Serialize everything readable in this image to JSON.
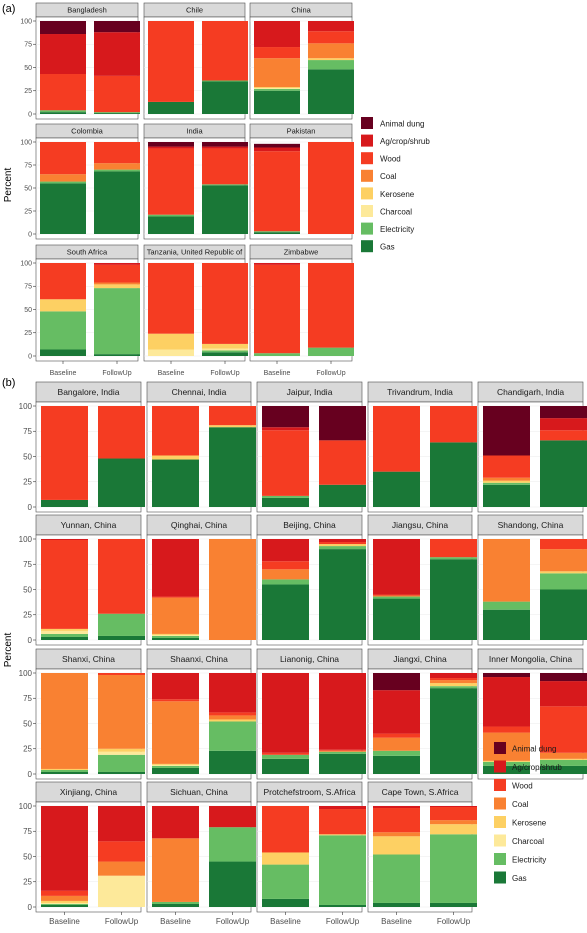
{
  "colors": {
    "Animal dung": "#67001f",
    "Ag/crop/shrub": "#d7191c",
    "Wood": "#f53c22",
    "Coal": "#f98132",
    "Kerosene": "#fdd063",
    "Charcoal": "#fde99a",
    "Electricity": "#66bd63",
    "Gas": "#1a7837"
  },
  "chart_data": [
    {
      "type": "bar",
      "stacked": true,
      "panel_label": "(a)",
      "ylabel": "Percent",
      "ylim": [
        0,
        100
      ],
      "yticks": [
        0,
        25,
        50,
        75,
        100
      ],
      "categories": [
        "Baseline",
        "FollowUp"
      ],
      "stack_order": [
        "Gas",
        "Electricity",
        "Charcoal",
        "Kerosene",
        "Coal",
        "Wood",
        "Ag/crop/shrub",
        "Animal dung"
      ],
      "legend": [
        "Animal dung",
        "Ag/crop/shrub",
        "Wood",
        "Coal",
        "Kerosene",
        "Charcoal",
        "Electricity",
        "Gas"
      ],
      "legend_position": "right",
      "grid": true,
      "facets": [
        {
          "title": "Bangladesh",
          "bars": [
            {
              "Gas": 2,
              "Electricity": 2,
              "Wood": 39,
              "Ag/crop/shrub": 43,
              "Animal dung": 14
            },
            {
              "Gas": 1,
              "Electricity": 1,
              "Wood": 39,
              "Ag/crop/shrub": 47,
              "Animal dung": 12
            }
          ]
        },
        {
          "title": "Chile",
          "bars": [
            {
              "Gas": 13,
              "Wood": 87
            },
            {
              "Gas": 35,
              "Electricity": 1,
              "Wood": 64
            }
          ]
        },
        {
          "title": "China",
          "bars": [
            {
              "Gas": 25,
              "Electricity": 2,
              "Charcoal": 1,
              "Kerosene": 1,
              "Coal": 31,
              "Wood": 12,
              "Ag/crop/shrub": 28
            },
            {
              "Gas": 48,
              "Electricity": 10,
              "Kerosene": 2,
              "Coal": 16,
              "Wood": 13,
              "Ag/crop/shrub": 11
            }
          ]
        },
        {
          "title": "Colombia",
          "bars": [
            {
              "Gas": 55,
              "Electricity": 2,
              "Coal": 8,
              "Wood": 35
            },
            {
              "Gas": 68,
              "Electricity": 2,
              "Coal": 7,
              "Wood": 23
            }
          ]
        },
        {
          "title": "India",
          "bars": [
            {
              "Gas": 19,
              "Electricity": 2,
              "Wood": 72,
              "Ag/crop/shrub": 2,
              "Animal dung": 5
            },
            {
              "Gas": 53,
              "Electricity": 1,
              "Wood": 39,
              "Ag/crop/shrub": 2,
              "Animal dung": 5
            }
          ]
        },
        {
          "title": "Pakistan",
          "bars": [
            {
              "Gas": 2,
              "Electricity": 1,
              "Wood": 87,
              "Ag/crop/shrub": 4,
              "Animal dung": 4
            },
            {
              "Wood": 100
            }
          ]
        },
        {
          "title": "South Africa",
          "bars": [
            {
              "Gas": 7,
              "Electricity": 41,
              "Kerosene": 13,
              "Wood": 39
            },
            {
              "Gas": 2,
              "Electricity": 71,
              "Kerosene": 4,
              "Coal": 2,
              "Wood": 19,
              "Ag/crop/shrub": 2
            }
          ]
        },
        {
          "title": "Tanzania, United Republic of",
          "bars": [
            {
              "Charcoal": 7,
              "Kerosene": 17,
              "Wood": 76
            },
            {
              "Gas": 4,
              "Electricity": 2,
              "Charcoal": 2,
              "Kerosene": 5,
              "Wood": 87
            }
          ]
        },
        {
          "title": "Zimbabwe",
          "bars": [
            {
              "Electricity": 3,
              "Wood": 95,
              "Ag/crop/shrub": 2
            },
            {
              "Electricity": 9,
              "Wood": 91
            }
          ]
        }
      ]
    },
    {
      "type": "bar",
      "stacked": true,
      "panel_label": "(b)",
      "ylabel": "Percent",
      "ylim": [
        0,
        100
      ],
      "yticks": [
        0,
        25,
        50,
        75,
        100
      ],
      "categories": [
        "Baseline",
        "FollowUp"
      ],
      "stack_order": [
        "Gas",
        "Electricity",
        "Charcoal",
        "Kerosene",
        "Coal",
        "Wood",
        "Ag/crop/shrub",
        "Animal dung"
      ],
      "legend": [
        "Animal dung",
        "Ag/crop/shrub",
        "Wood",
        "Coal",
        "Kerosene",
        "Charcoal",
        "Electricity",
        "Gas"
      ],
      "legend_position": "bottom-right",
      "grid": true,
      "facets": [
        {
          "title": "Bangalore, India",
          "bars": [
            {
              "Gas": 7,
              "Wood": 93
            },
            {
              "Gas": 48,
              "Wood": 52
            }
          ]
        },
        {
          "title": "Chennai, India",
          "bars": [
            {
              "Gas": 47,
              "Kerosene": 4,
              "Wood": 49
            },
            {
              "Gas": 79,
              "Kerosene": 2,
              "Wood": 19
            }
          ]
        },
        {
          "title": "Jaipur, India",
          "bars": [
            {
              "Gas": 9,
              "Electricity": 2,
              "Wood": 65,
              "Ag/crop/shrub": 3,
              "Animal dung": 21
            },
            {
              "Gas": 22,
              "Wood": 44,
              "Animal dung": 34
            }
          ]
        },
        {
          "title": "Trivandrum, India",
          "bars": [
            {
              "Gas": 35,
              "Wood": 65
            },
            {
              "Gas": 64,
              "Wood": 36
            }
          ]
        },
        {
          "title": "Chandigarh, India",
          "bars": [
            {
              "Gas": 22,
              "Electricity": 2,
              "Kerosene": 2,
              "Coal": 3,
              "Wood": 22,
              "Animal dung": 49
            },
            {
              "Gas": 66,
              "Wood": 10,
              "Ag/crop/shrub": 12,
              "Animal dung": 12
            }
          ]
        },
        {
          "title": "Yunnan, China",
          "bars": [
            {
              "Gas": 3,
              "Electricity": 3,
              "Charcoal": 3,
              "Kerosene": 2,
              "Wood": 88,
              "Ag/crop/shrub": 1
            },
            {
              "Gas": 4,
              "Electricity": 22,
              "Wood": 74
            }
          ]
        },
        {
          "title": "Qinghai, China",
          "bars": [
            {
              "Gas": 2,
              "Electricity": 2,
              "Charcoal": 1,
              "Kerosene": 1,
              "Coal": 36,
              "Wood": 1,
              "Ag/crop/shrub": 57
            },
            {
              "Coal": 100
            }
          ]
        },
        {
          "title": "Beijing, China",
          "bars": [
            {
              "Gas": 55,
              "Electricity": 5,
              "Coal": 10,
              "Wood": 8,
              "Ag/crop/shrub": 22
            },
            {
              "Gas": 90,
              "Electricity": 3,
              "Kerosene": 2,
              "Wood": 2,
              "Ag/crop/shrub": 3
            }
          ]
        },
        {
          "title": "Jiangsu, China",
          "bars": [
            {
              "Gas": 41,
              "Electricity": 2,
              "Coal": 1,
              "Wood": 1,
              "Ag/crop/shrub": 55
            },
            {
              "Gas": 80,
              "Electricity": 2,
              "Wood": 18
            }
          ]
        },
        {
          "title": "Shandong, China",
          "bars": [
            {
              "Gas": 30,
              "Electricity": 8,
              "Coal": 62
            },
            {
              "Gas": 50,
              "Electricity": 16,
              "Kerosene": 2,
              "Coal": 22,
              "Wood": 10
            }
          ]
        },
        {
          "title": "Shanxi, China",
          "bars": [
            {
              "Gas": 2,
              "Electricity": 2,
              "Kerosene": 1,
              "Coal": 95
            },
            {
              "Gas": 2,
              "Electricity": 17,
              "Charcoal": 3,
              "Kerosene": 3,
              "Coal": 73,
              "Wood": 2
            }
          ]
        },
        {
          "title": "Shaanxi, China",
          "bars": [
            {
              "Gas": 6,
              "Electricity": 2,
              "Charcoal": 1,
              "Kerosene": 1,
              "Coal": 62,
              "Wood": 2,
              "Ag/crop/shrub": 26
            },
            {
              "Gas": 23,
              "Electricity": 29,
              "Kerosene": 2,
              "Coal": 4,
              "Wood": 3,
              "Ag/crop/shrub": 39
            }
          ]
        },
        {
          "title": "Lianonig, China",
          "bars": [
            {
              "Gas": 15,
              "Electricity": 4,
              "Wood": 2,
              "Ag/crop/shrub": 79
            },
            {
              "Gas": 20,
              "Electricity": 2,
              "Coal": 1,
              "Wood": 1,
              "Ag/crop/shrub": 76
            }
          ]
        },
        {
          "title": "Jiangxi, China",
          "bars": [
            {
              "Gas": 18,
              "Electricity": 5,
              "Coal": 13,
              "Wood": 4,
              "Ag/crop/shrub": 43,
              "Animal dung": 17
            },
            {
              "Gas": 85,
              "Electricity": 2,
              "Kerosene": 3,
              "Coal": 3,
              "Wood": 2,
              "Ag/crop/shrub": 5
            }
          ]
        },
        {
          "title": "Inner Mongolia, China",
          "bars": [
            {
              "Gas": 8,
              "Electricity": 4,
              "Kerosene": 1,
              "Coal": 28,
              "Wood": 6,
              "Ag/crop/shrub": 49,
              "Animal dung": 4
            },
            {
              "Gas": 8,
              "Electricity": 6,
              "Kerosene": 1,
              "Coal": 6,
              "Wood": 46,
              "Ag/crop/shrub": 25,
              "Animal dung": 8
            }
          ]
        },
        {
          "title": "Xinjiang, China",
          "bars": [
            {
              "Gas": 2,
              "Electricity": 1,
              "Charcoal": 1,
              "Kerosene": 2,
              "Coal": 5,
              "Wood": 5,
              "Ag/crop/shrub": 84
            },
            {
              "Charcoal": 31,
              "Coal": 14,
              "Wood": 20,
              "Ag/crop/shrub": 35
            }
          ]
        },
        {
          "title": "Sichuan, China",
          "bars": [
            {
              "Gas": 3,
              "Electricity": 2,
              "Coal": 63,
              "Ag/crop/shrub": 32
            },
            {
              "Gas": 45,
              "Electricity": 34,
              "Ag/crop/shrub": 21
            }
          ]
        },
        {
          "title": "Protchefstroom, S.Africa",
          "bars": [
            {
              "Gas": 8,
              "Electricity": 34,
              "Kerosene": 12,
              "Wood": 46
            },
            {
              "Gas": 2,
              "Electricity": 69,
              "Kerosene": 1,
              "Wood": 25,
              "Ag/crop/shrub": 3
            }
          ]
        },
        {
          "title": "Cape Town, S.Africa",
          "bars": [
            {
              "Gas": 4,
              "Electricity": 48,
              "Kerosene": 18,
              "Coal": 4,
              "Wood": 24,
              "Ag/crop/shrub": 2
            },
            {
              "Gas": 4,
              "Electricity": 68,
              "Kerosene": 10,
              "Coal": 4,
              "Wood": 13,
              "Ag/crop/shrub": 1
            }
          ]
        }
      ]
    }
  ]
}
